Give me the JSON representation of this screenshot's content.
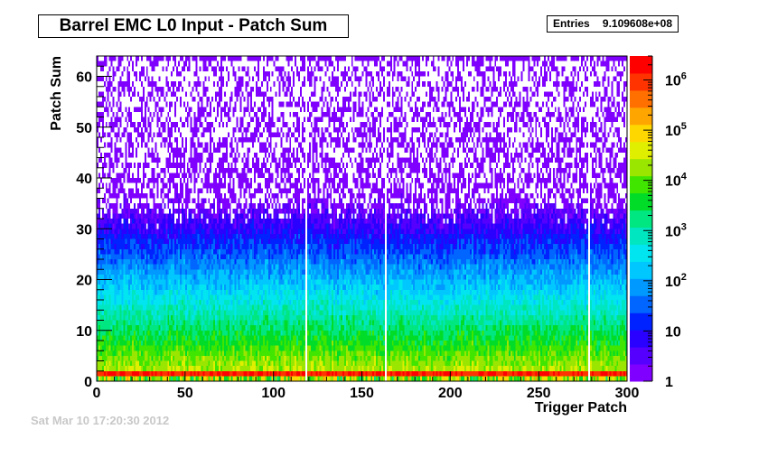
{
  "stats": {
    "label": "Entries",
    "value": "9.109608e+08"
  },
  "timestamp": "Sat Mar 10 17:20:30 2012",
  "chart_data": {
    "type": "heatmap",
    "title": "Barrel EMC L0 Input - Patch Sum",
    "xlabel": "Trigger Patch",
    "ylabel": "Patch Sum",
    "xlim": [
      0,
      300
    ],
    "ylim": [
      0,
      64
    ],
    "x_bins": 300,
    "y_bins": 64,
    "x_ticks": [
      "0",
      "50",
      "100",
      "150",
      "200",
      "250",
      "300"
    ],
    "x_tick_values": [
      0,
      50,
      100,
      150,
      200,
      250,
      300
    ],
    "y_ticks": [
      "0",
      "10",
      "20",
      "30",
      "40",
      "50",
      "60"
    ],
    "y_tick_values": [
      0,
      10,
      20,
      30,
      40,
      50,
      60
    ],
    "z_scale": "log",
    "z_range": [
      1,
      3000000
    ],
    "z_ticks": [
      {
        "label": "1",
        "value": 1
      },
      {
        "label": "10",
        "value": 10
      },
      {
        "label": "10^2",
        "value": 100
      },
      {
        "label": "10^3",
        "value": 1000
      },
      {
        "label": "10^4",
        "value": 10000
      },
      {
        "label": "10^5",
        "value": 100000
      },
      {
        "label": "10^6",
        "value": 1000000
      }
    ],
    "empty_columns": [
      118,
      163,
      278
    ],
    "palette": [
      "#7f00ff",
      "#5500ff",
      "#2a00ff",
      "#0022ff",
      "#0066ff",
      "#0099ff",
      "#00c8ff",
      "#00e5f0",
      "#00e6c0",
      "#00e680",
      "#00dc28",
      "#40e600",
      "#9ae600",
      "#e0ee00",
      "#ffd700",
      "#ffa500",
      "#ff7000",
      "#ff3300",
      "#ff0000"
    ],
    "grid": false
  }
}
